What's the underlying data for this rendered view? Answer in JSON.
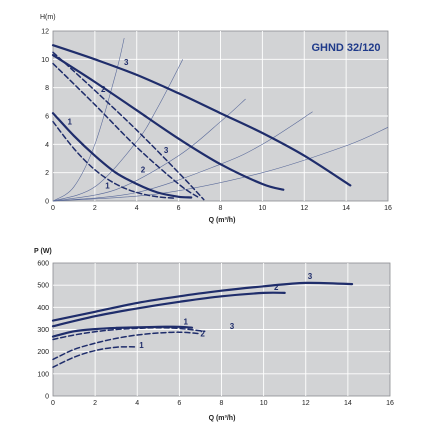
{
  "colors": {
    "background": "#ffffff",
    "plot_bg": "#d2d3d5",
    "grid": "#ffffff",
    "curve": "#1f2d6b",
    "system_curve": "#5a6a9a",
    "title": "#1f3a8a"
  },
  "chart_data": [
    {
      "type": "line",
      "title": "GHND 32/120",
      "xlabel": "Q (m³/h)",
      "ylabel": "H(m)",
      "xlim": [
        0,
        16
      ],
      "ylim": [
        0,
        12
      ],
      "xticks": [
        "0",
        "2",
        "4",
        "6",
        "8",
        "10",
        "12",
        "14",
        "16"
      ],
      "yticks": [
        "0",
        "2",
        "4",
        "6",
        "8",
        "10",
        "12"
      ],
      "grid": true,
      "series": [
        {
          "name": "3",
          "dashed": false,
          "x": [
            0,
            2,
            4,
            6,
            8,
            10,
            12,
            14.2
          ],
          "y": [
            11,
            10.0,
            8.9,
            7.6,
            6.2,
            4.8,
            3.2,
            1.1
          ]
        },
        {
          "name": "2",
          "dashed": false,
          "x": [
            0,
            2,
            4,
            6,
            8,
            10,
            11
          ],
          "y": [
            10.3,
            8.4,
            6.4,
            4.4,
            2.6,
            1.2,
            0.8
          ]
        },
        {
          "name": "1",
          "dashed": false,
          "x": [
            0,
            1,
            2,
            3,
            4,
            5,
            6,
            6.6
          ],
          "y": [
            6.2,
            4.6,
            3.2,
            2.0,
            1.2,
            0.6,
            0.3,
            0.25
          ]
        },
        {
          "name": "3",
          "dashed": true,
          "x": [
            0,
            2,
            4,
            6,
            7.2
          ],
          "y": [
            10.5,
            7.8,
            5.0,
            2.0,
            0.1
          ]
        },
        {
          "name": "2",
          "dashed": true,
          "x": [
            0,
            2,
            4,
            6,
            6.9
          ],
          "y": [
            9.7,
            6.8,
            3.8,
            1.2,
            0.3
          ]
        },
        {
          "name": "1",
          "dashed": true,
          "x": [
            0,
            1,
            2,
            3,
            4,
            5,
            5.8
          ],
          "y": [
            5.6,
            3.7,
            2.2,
            1.2,
            0.6,
            0.3,
            0.2
          ]
        }
      ],
      "system_curves": [
        {
          "x": [
            0,
            1,
            2,
            3,
            3.4
          ],
          "y": [
            0,
            1.0,
            4.0,
            9.0,
            11.5
          ]
        },
        {
          "x": [
            0,
            2,
            4,
            5,
            6.2
          ],
          "y": [
            0,
            1.0,
            4.2,
            6.6,
            10.0
          ]
        },
        {
          "x": [
            0,
            3,
            6,
            8,
            9.2
          ],
          "y": [
            0,
            0.8,
            3.2,
            5.6,
            7.2
          ]
        },
        {
          "x": [
            0,
            4,
            8,
            10,
            12.4
          ],
          "y": [
            0,
            0.6,
            2.6,
            4.0,
            6.3
          ]
        },
        {
          "x": [
            0,
            5,
            10,
            14,
            16
          ],
          "y": [
            0,
            0.5,
            2.0,
            3.9,
            5.2
          ]
        }
      ]
    },
    {
      "type": "line",
      "xlabel": "Q (m³/h)",
      "ylabel": "P (W)",
      "xlim": [
        0,
        16
      ],
      "ylim": [
        0,
        600
      ],
      "xticks": [
        "0",
        "2",
        "4",
        "6",
        "8",
        "10",
        "12",
        "14",
        "16"
      ],
      "yticks": [
        "0",
        "100",
        "200",
        "300",
        "400",
        "500",
        "600"
      ],
      "grid": true,
      "series": [
        {
          "name": "3",
          "dashed": false,
          "x": [
            0,
            2,
            4,
            6,
            8,
            10,
            12,
            14.2
          ],
          "y": [
            340,
            380,
            420,
            450,
            475,
            495,
            510,
            505
          ]
        },
        {
          "name": "2",
          "dashed": false,
          "x": [
            0,
            2,
            4,
            6,
            8,
            10,
            11
          ],
          "y": [
            315,
            360,
            395,
            425,
            450,
            465,
            465
          ]
        },
        {
          "name": "1",
          "dashed": false,
          "x": [
            0,
            1,
            2,
            3,
            4,
            5,
            6,
            6.6
          ],
          "y": [
            268,
            292,
            302,
            307,
            310,
            312,
            312,
            308
          ]
        },
        {
          "name": "3",
          "dashed": true,
          "x": [
            0,
            1,
            2,
            3,
            4,
            5,
            6,
            7.2
          ],
          "y": [
            255,
            275,
            290,
            300,
            305,
            308,
            305,
            292
          ]
        },
        {
          "name": "2",
          "dashed": true,
          "x": [
            0,
            1,
            2,
            3,
            4,
            5,
            6,
            6.9
          ],
          "y": [
            165,
            210,
            238,
            260,
            275,
            284,
            288,
            282
          ]
        },
        {
          "name": "1",
          "dashed": true,
          "x": [
            0,
            1,
            2,
            3,
            4
          ],
          "y": [
            130,
            175,
            205,
            220,
            222
          ]
        }
      ],
      "annotations": [
        {
          "text": "3",
          "x": 12.2,
          "y": 528
        },
        {
          "text": "2",
          "x": 10.6,
          "y": 478
        },
        {
          "text": "1",
          "x": 6.3,
          "y": 323
        },
        {
          "text": "3",
          "x": 8.5,
          "y": 302
        },
        {
          "text": "2",
          "x": 7.1,
          "y": 268
        },
        {
          "text": "1",
          "x": 4.2,
          "y": 217
        }
      ]
    }
  ]
}
